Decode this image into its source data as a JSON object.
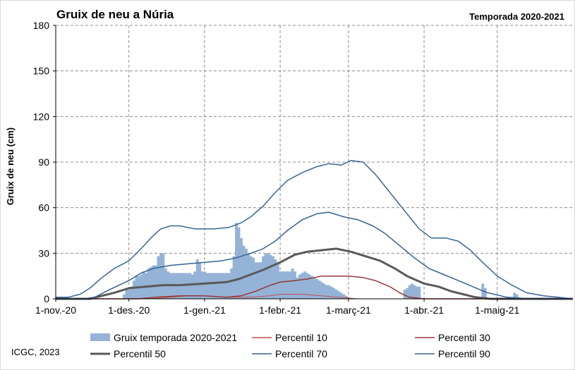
{
  "chart_data": {
    "type": "bar+line",
    "title": "Gruix de neu a Núria",
    "subtitle": "Temporada 2020-2021",
    "ylabel": "Gruix de neu (cm)",
    "xlabel": "",
    "ylim": [
      0,
      180
    ],
    "yticks": [
      "0",
      "30",
      "60",
      "90",
      "120",
      "150",
      "180"
    ],
    "xticks": [
      "1-nov.-20",
      "1-des.-20",
      "1-gen.-21",
      "1-febr.-21",
      "1-març-21",
      "1-abr.-21",
      "1-maig-21"
    ],
    "grid": true,
    "legend_position": "bottom",
    "footer": "ICGC, 2023",
    "bars": {
      "name": "Gruix temporada 2020-2021",
      "color": "#95b3d7",
      "points": [
        [
          "2020-11-29",
          3
        ],
        [
          "2020-11-30",
          6
        ],
        [
          "2020-12-01",
          6
        ],
        [
          "2020-12-02",
          8
        ],
        [
          "2020-12-03",
          12
        ],
        [
          "2020-12-04",
          15
        ],
        [
          "2020-12-05",
          15
        ],
        [
          "2020-12-06",
          16
        ],
        [
          "2020-12-07",
          18
        ],
        [
          "2020-12-08",
          17
        ],
        [
          "2020-12-09",
          20
        ],
        [
          "2020-12-10",
          21
        ],
        [
          "2020-12-11",
          22
        ],
        [
          "2020-12-12",
          22
        ],
        [
          "2020-12-13",
          28
        ],
        [
          "2020-12-14",
          30
        ],
        [
          "2020-12-15",
          30
        ],
        [
          "2020-12-16",
          20
        ],
        [
          "2020-12-17",
          18
        ],
        [
          "2020-12-18",
          17
        ],
        [
          "2020-12-19",
          17
        ],
        [
          "2020-12-20",
          17
        ],
        [
          "2020-12-21",
          17
        ],
        [
          "2020-12-22",
          17
        ],
        [
          "2020-12-23",
          17
        ],
        [
          "2020-12-24",
          17
        ],
        [
          "2020-12-25",
          17
        ],
        [
          "2020-12-26",
          17
        ],
        [
          "2020-12-27",
          16
        ],
        [
          "2020-12-28",
          18
        ],
        [
          "2020-12-29",
          26
        ],
        [
          "2020-12-30",
          24
        ],
        [
          "2020-12-31",
          18
        ],
        [
          "2021-01-01",
          18
        ],
        [
          "2021-01-02",
          17
        ],
        [
          "2021-01-03",
          17
        ],
        [
          "2021-01-04",
          17
        ],
        [
          "2021-01-05",
          17
        ],
        [
          "2021-01-06",
          17
        ],
        [
          "2021-01-07",
          17
        ],
        [
          "2021-01-08",
          17
        ],
        [
          "2021-01-09",
          17
        ],
        [
          "2021-01-10",
          17
        ],
        [
          "2021-01-11",
          17
        ],
        [
          "2021-01-12",
          20
        ],
        [
          "2021-01-13",
          28
        ],
        [
          "2021-01-14",
          50
        ],
        [
          "2021-01-15",
          47
        ],
        [
          "2021-01-16",
          40
        ],
        [
          "2021-01-17",
          35
        ],
        [
          "2021-01-18",
          33
        ],
        [
          "2021-01-19",
          30
        ],
        [
          "2021-01-20",
          28
        ],
        [
          "2021-01-21",
          27
        ],
        [
          "2021-01-22",
          24
        ],
        [
          "2021-01-23",
          24
        ],
        [
          "2021-01-24",
          24
        ],
        [
          "2021-01-25",
          28
        ],
        [
          "2021-01-26",
          30
        ],
        [
          "2021-01-27",
          30
        ],
        [
          "2021-01-28",
          29
        ],
        [
          "2021-01-29",
          28
        ],
        [
          "2021-01-30",
          26
        ],
        [
          "2021-01-31",
          24
        ],
        [
          "2021-02-01",
          18
        ],
        [
          "2021-02-02",
          18
        ],
        [
          "2021-02-03",
          18
        ],
        [
          "2021-02-04",
          18
        ],
        [
          "2021-02-05",
          18
        ],
        [
          "2021-02-06",
          20
        ],
        [
          "2021-02-07",
          18
        ],
        [
          "2021-02-08",
          14
        ],
        [
          "2021-02-09",
          16
        ],
        [
          "2021-02-10",
          17
        ],
        [
          "2021-02-11",
          18
        ],
        [
          "2021-02-12",
          17
        ],
        [
          "2021-02-13",
          16
        ],
        [
          "2021-02-14",
          15
        ],
        [
          "2021-02-15",
          14
        ],
        [
          "2021-02-16",
          13
        ],
        [
          "2021-02-17",
          12
        ],
        [
          "2021-02-18",
          11
        ],
        [
          "2021-02-19",
          10
        ],
        [
          "2021-02-20",
          9
        ],
        [
          "2021-02-21",
          9
        ],
        [
          "2021-02-22",
          8
        ],
        [
          "2021-02-23",
          7
        ],
        [
          "2021-02-24",
          6
        ],
        [
          "2021-02-25",
          5
        ],
        [
          "2021-02-26",
          4
        ],
        [
          "2021-02-27",
          3
        ],
        [
          "2021-02-28",
          2
        ],
        [
          "2021-03-01",
          1
        ],
        [
          "2021-03-24",
          6
        ],
        [
          "2021-03-25",
          7
        ],
        [
          "2021-03-26",
          9
        ],
        [
          "2021-03-27",
          10
        ],
        [
          "2021-03-28",
          9
        ],
        [
          "2021-03-29",
          8
        ],
        [
          "2021-03-30",
          8
        ],
        [
          "2021-04-25",
          10
        ],
        [
          "2021-04-26",
          7
        ],
        [
          "2021-05-08",
          4
        ],
        [
          "2021-05-09",
          3
        ]
      ]
    },
    "series": [
      {
        "name": "Percentil 10",
        "color": "#c0504d",
        "width": 1,
        "points": [
          [
            "2020-11-01",
            0
          ],
          [
            "2020-12-10",
            0
          ],
          [
            "2020-12-18",
            1
          ],
          [
            "2020-12-25",
            2
          ],
          [
            "2021-01-01",
            2
          ],
          [
            "2021-01-10",
            1
          ],
          [
            "2021-01-20",
            1
          ],
          [
            "2021-01-28",
            2
          ],
          [
            "2021-02-01",
            3
          ],
          [
            "2021-02-05",
            3
          ],
          [
            "2021-02-10",
            3
          ],
          [
            "2021-02-18",
            2
          ],
          [
            "2021-02-25",
            1
          ],
          [
            "2021-03-05",
            0
          ],
          [
            "2021-06-01",
            0
          ]
        ]
      },
      {
        "name": "Percentil 30",
        "color": "#953735",
        "width": 1.5,
        "points": [
          [
            "2020-11-01",
            0
          ],
          [
            "2020-12-05",
            0
          ],
          [
            "2020-12-12",
            1
          ],
          [
            "2020-12-22",
            2
          ],
          [
            "2021-01-01",
            2
          ],
          [
            "2021-01-10",
            1
          ],
          [
            "2021-01-16",
            2
          ],
          [
            "2021-01-22",
            5
          ],
          [
            "2021-01-28",
            9
          ],
          [
            "2021-02-01",
            11
          ],
          [
            "2021-02-07",
            12
          ],
          [
            "2021-02-12",
            13
          ],
          [
            "2021-02-18",
            15
          ],
          [
            "2021-02-25",
            15
          ],
          [
            "2021-03-01",
            15
          ],
          [
            "2021-03-07",
            14
          ],
          [
            "2021-03-12",
            12
          ],
          [
            "2021-03-18",
            8
          ],
          [
            "2021-03-22",
            4
          ],
          [
            "2021-03-26",
            1
          ],
          [
            "2021-04-01",
            0
          ],
          [
            "2021-06-01",
            0
          ]
        ]
      },
      {
        "name": "Percentil 50",
        "color": "#595959",
        "width": 3,
        "points": [
          [
            "2020-11-01",
            0
          ],
          [
            "2020-11-15",
            0
          ],
          [
            "2020-11-20",
            2
          ],
          [
            "2020-11-25",
            4
          ],
          [
            "2020-12-01",
            7
          ],
          [
            "2020-12-08",
            8
          ],
          [
            "2020-12-15",
            9
          ],
          [
            "2020-12-22",
            9
          ],
          [
            "2021-01-01",
            10
          ],
          [
            "2021-01-10",
            11
          ],
          [
            "2021-01-15",
            13
          ],
          [
            "2021-01-20",
            16
          ],
          [
            "2021-01-25",
            19
          ],
          [
            "2021-02-01",
            24
          ],
          [
            "2021-02-07",
            29
          ],
          [
            "2021-02-12",
            31
          ],
          [
            "2021-02-18",
            32
          ],
          [
            "2021-02-24",
            33
          ],
          [
            "2021-03-02",
            31
          ],
          [
            "2021-03-08",
            28
          ],
          [
            "2021-03-14",
            25
          ],
          [
            "2021-03-20",
            20
          ],
          [
            "2021-03-25",
            15
          ],
          [
            "2021-04-01",
            10
          ],
          [
            "2021-04-07",
            8
          ],
          [
            "2021-04-12",
            5
          ],
          [
            "2021-04-17",
            3
          ],
          [
            "2021-04-22",
            1
          ],
          [
            "2021-04-28",
            0
          ],
          [
            "2021-06-01",
            0
          ]
        ]
      },
      {
        "name": "Percentil 70",
        "color": "#366092",
        "width": 1.5,
        "points": [
          [
            "2020-11-01",
            0
          ],
          [
            "2020-11-12",
            0
          ],
          [
            "2020-11-17",
            1
          ],
          [
            "2020-11-23",
            6
          ],
          [
            "2020-12-01",
            12
          ],
          [
            "2020-12-06",
            17
          ],
          [
            "2020-12-11",
            20
          ],
          [
            "2020-12-18",
            22
          ],
          [
            "2020-12-25",
            23
          ],
          [
            "2021-01-01",
            24
          ],
          [
            "2021-01-08",
            25
          ],
          [
            "2021-01-14",
            27
          ],
          [
            "2021-01-20",
            30
          ],
          [
            "2021-01-25",
            33
          ],
          [
            "2021-01-30",
            38
          ],
          [
            "2021-02-04",
            45
          ],
          [
            "2021-02-10",
            52
          ],
          [
            "2021-02-16",
            56
          ],
          [
            "2021-02-21",
            57
          ],
          [
            "2021-02-27",
            54
          ],
          [
            "2021-03-05",
            52
          ],
          [
            "2021-03-11",
            48
          ],
          [
            "2021-03-16",
            43
          ],
          [
            "2021-03-22",
            35
          ],
          [
            "2021-03-28",
            27
          ],
          [
            "2021-04-03",
            20
          ],
          [
            "2021-04-09",
            16
          ],
          [
            "2021-04-15",
            12
          ],
          [
            "2021-04-21",
            8
          ],
          [
            "2021-04-27",
            4
          ],
          [
            "2021-05-05",
            1
          ],
          [
            "2021-05-15",
            0
          ],
          [
            "2021-06-01",
            0
          ]
        ]
      },
      {
        "name": "Percentil 90",
        "color": "#3a6596",
        "width": 1.5,
        "points": [
          [
            "2020-11-01",
            1
          ],
          [
            "2020-11-06",
            1
          ],
          [
            "2020-11-11",
            3
          ],
          [
            "2020-11-15",
            7
          ],
          [
            "2020-11-20",
            14
          ],
          [
            "2020-11-25",
            20
          ],
          [
            "2020-12-01",
            25
          ],
          [
            "2020-12-06",
            33
          ],
          [
            "2020-12-10",
            40
          ],
          [
            "2020-12-14",
            46
          ],
          [
            "2020-12-18",
            48
          ],
          [
            "2020-12-22",
            48
          ],
          [
            "2020-12-28",
            46
          ],
          [
            "2021-01-05",
            46
          ],
          [
            "2021-01-11",
            47
          ],
          [
            "2021-01-16",
            50
          ],
          [
            "2021-01-20",
            54
          ],
          [
            "2021-01-25",
            61
          ],
          [
            "2021-01-30",
            70
          ],
          [
            "2021-02-04",
            78
          ],
          [
            "2021-02-10",
            83
          ],
          [
            "2021-02-16",
            87
          ],
          [
            "2021-02-21",
            89
          ],
          [
            "2021-02-26",
            88
          ],
          [
            "2021-03-02",
            91
          ],
          [
            "2021-03-07",
            90
          ],
          [
            "2021-03-12",
            82
          ],
          [
            "2021-03-18",
            70
          ],
          [
            "2021-03-24",
            58
          ],
          [
            "2021-03-30",
            46
          ],
          [
            "2021-04-04",
            40
          ],
          [
            "2021-04-10",
            40
          ],
          [
            "2021-04-15",
            38
          ],
          [
            "2021-04-20",
            32
          ],
          [
            "2021-04-25",
            24
          ],
          [
            "2021-05-01",
            15
          ],
          [
            "2021-05-07",
            9
          ],
          [
            "2021-05-13",
            4
          ],
          [
            "2021-05-20",
            2
          ],
          [
            "2021-05-26",
            1
          ],
          [
            "2021-06-01",
            0
          ]
        ]
      }
    ]
  }
}
